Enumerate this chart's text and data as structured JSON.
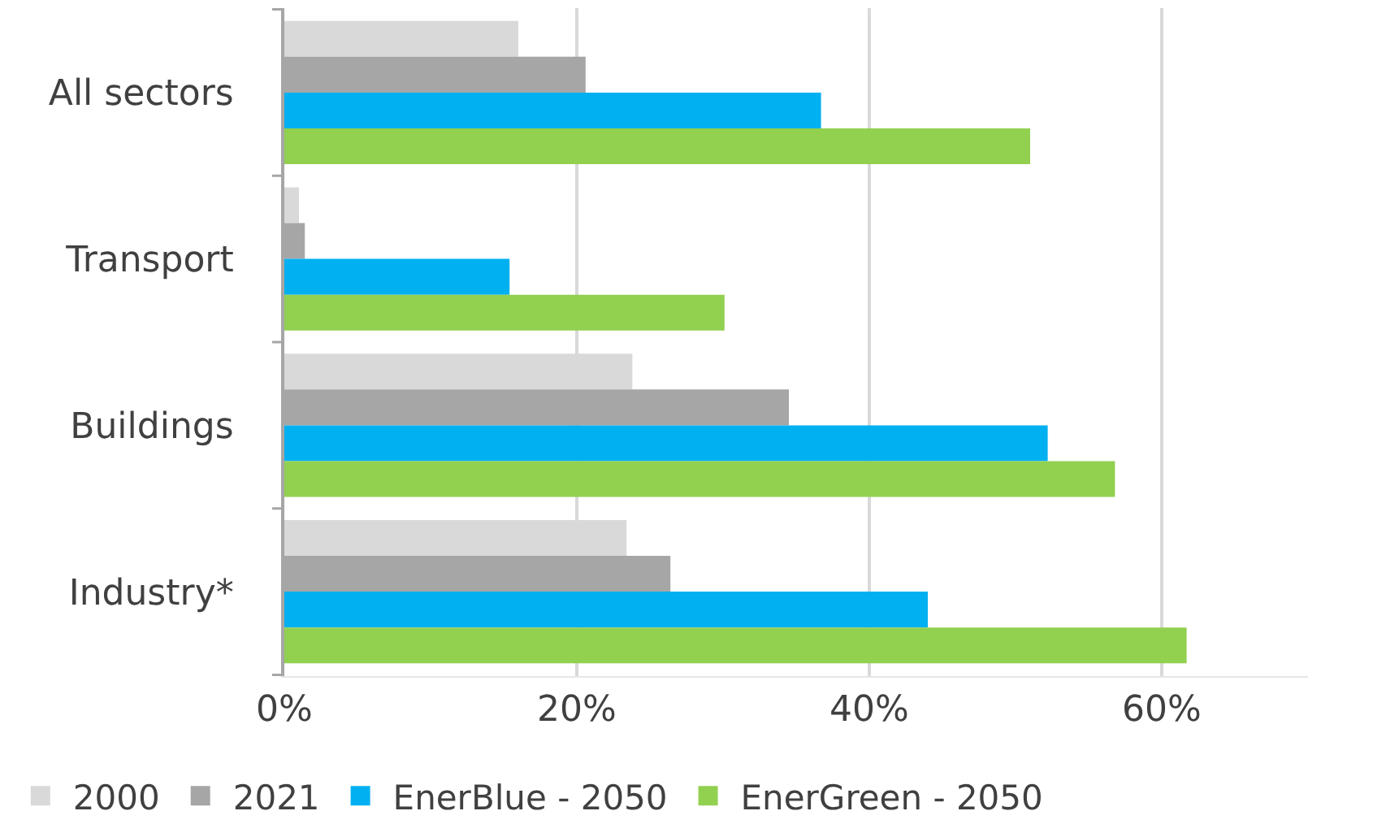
{
  "chart_data": {
    "type": "bar",
    "orientation": "horizontal",
    "categories": [
      "All sectors",
      "Transport",
      "Buildings",
      "Industry*"
    ],
    "series": [
      {
        "name": "2000",
        "color": "#d9d9d9",
        "values": [
          16,
          1,
          23.8,
          23.4
        ]
      },
      {
        "name": "2021",
        "color": "#a6a6a6",
        "values": [
          20.6,
          1.4,
          34.5,
          26.4
        ]
      },
      {
        "name": "EnerBlue - 2050",
        "color": "#00b0f0",
        "values": [
          36.7,
          15.4,
          52.2,
          44
        ]
      },
      {
        "name": "EnerGreen - 2050",
        "color": "#92d050",
        "values": [
          51,
          30.1,
          56.8,
          61.7
        ]
      }
    ],
    "xlim": [
      0,
      70
    ],
    "xticks": [
      {
        "value": 0,
        "label": "0%"
      },
      {
        "value": 20,
        "label": "20%"
      },
      {
        "value": 40,
        "label": "40%"
      },
      {
        "value": 60,
        "label": "60%"
      }
    ],
    "grid": "x",
    "legend": "bottom"
  }
}
